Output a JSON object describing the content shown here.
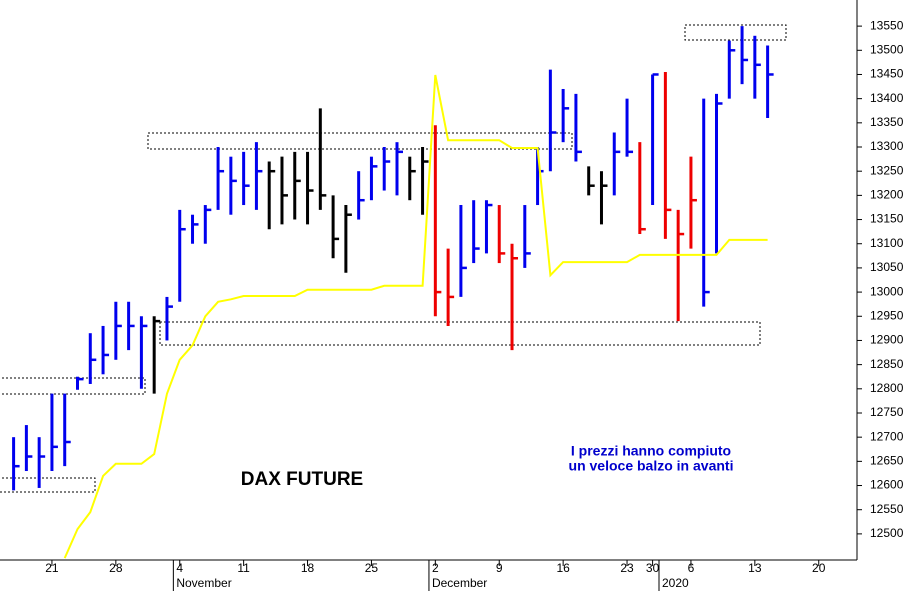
{
  "chart_data": {
    "type": "ohlc",
    "title": "DAX FUTURE",
    "annotation": [
      "I prezzi hanno compiuto",
      "un veloce balzo in avanti"
    ],
    "annotation_color": "#0000cc",
    "categories": [
      null,
      null,
      null,
      "21",
      null,
      null,
      null,
      null,
      "28",
      null,
      null,
      null,
      null,
      "4",
      null,
      null,
      null,
      null,
      "11",
      null,
      null,
      null,
      null,
      "18",
      null,
      null,
      null,
      null,
      "25",
      null,
      null,
      null,
      null,
      "2",
      null,
      null,
      null,
      null,
      "9",
      null,
      null,
      null,
      null,
      "16",
      null,
      null,
      null,
      null,
      "23",
      null,
      "30",
      null,
      null,
      "6",
      null,
      null,
      null,
      null,
      "13",
      null,
      null,
      null,
      null,
      "20"
    ],
    "months": [
      null,
      null,
      null,
      null,
      null,
      null,
      null,
      null,
      null,
      null,
      null,
      null,
      null,
      "November",
      null,
      null,
      null,
      null,
      null,
      null,
      null,
      null,
      null,
      null,
      null,
      null,
      null,
      null,
      null,
      null,
      null,
      null,
      null,
      "December",
      null,
      null,
      null,
      null,
      null,
      null,
      null,
      null,
      null,
      null,
      null,
      null,
      null,
      null,
      null,
      null,
      null,
      "2020",
      null,
      null,
      null,
      null,
      null,
      null,
      null,
      null,
      null,
      null,
      null,
      null
    ],
    "high": [
      12700,
      12725,
      12700,
      12790,
      12790,
      12825,
      12915,
      12930,
      12980,
      12980,
      12950,
      12950,
      12990,
      13170,
      13160,
      13180,
      13300,
      13280,
      13290,
      13310,
      13270,
      13280,
      13290,
      13290,
      13380,
      13200,
      13180,
      13250,
      13280,
      13300,
      13310,
      13280,
      13300,
      13345,
      13090,
      13180,
      13190,
      13190,
      13180,
      13100,
      13180,
      13300,
      13460,
      13420,
      13410,
      13260,
      13250,
      13330,
      13400,
      13310,
      13450,
      13455,
      13170,
      13280,
      13400,
      13410,
      13520,
      13550,
      13530,
      13510,
      null,
      null,
      null,
      null
    ],
    "low": [
      12590,
      12630,
      12595,
      12630,
      12640,
      12798,
      12810,
      12830,
      12860,
      12880,
      12800,
      12790,
      12900,
      12980,
      13100,
      13100,
      13170,
      13160,
      13180,
      13170,
      13130,
      13140,
      13150,
      13140,
      13170,
      13070,
      13040,
      13150,
      13190,
      13210,
      13200,
      13190,
      13160,
      12950,
      12930,
      12990,
      13060,
      13080,
      13060,
      12880,
      13050,
      13180,
      13250,
      13310,
      13270,
      13200,
      13140,
      13200,
      13280,
      13120,
      13180,
      13110,
      12940,
      13090,
      12970,
      13080,
      13400,
      13430,
      13400,
      13360,
      null,
      null,
      null,
      null
    ],
    "close": [
      12640,
      12660,
      12660,
      12680,
      12690,
      12820,
      12860,
      12870,
      12930,
      12930,
      12930,
      12940,
      12970,
      13130,
      13140,
      13170,
      13250,
      13230,
      13220,
      13250,
      13250,
      13200,
      13230,
      13210,
      13200,
      13110,
      13160,
      13190,
      13260,
      13270,
      13290,
      13250,
      13270,
      13000,
      12990,
      13050,
      13090,
      13180,
      13080,
      13070,
      13080,
      13250,
      13330,
      13380,
      13290,
      13220,
      13220,
      13290,
      13290,
      13130,
      13450,
      13170,
      13120,
      13190,
      13000,
      13390,
      13500,
      13480,
      13470,
      13450,
      null,
      null,
      null,
      null
    ],
    "bar_colors": [
      "#0000ee",
      "#0000ee",
      "#0000ee",
      "#0000ee",
      "#0000ee",
      "#0000ee",
      "#0000ee",
      "#0000ee",
      "#0000ee",
      "#0000ee",
      "#0000ee",
      "#000000",
      "#0000ee",
      "#0000ee",
      "#0000ee",
      "#0000ee",
      "#0000ee",
      "#0000ee",
      "#0000ee",
      "#0000ee",
      "#000000",
      "#000000",
      "#000000",
      "#000000",
      "#000000",
      "#000000",
      "#000000",
      "#0000ee",
      "#0000ee",
      "#0000ee",
      "#0000ee",
      "#000000",
      "#000000",
      "#ee0000",
      "#ee0000",
      "#0000ee",
      "#0000ee",
      "#0000ee",
      "#ee0000",
      "#ee0000",
      "#0000ee",
      "#0000ee",
      "#0000ee",
      "#0000ee",
      "#0000ee",
      "#000000",
      "#000000",
      "#0000ee",
      "#0000ee",
      "#ee0000",
      "#0000ee",
      "#ee0000",
      "#ee0000",
      "#ee0000",
      "#0000ee",
      "#0000ee",
      "#0000ee",
      "#0000ee",
      "#0000ee",
      "#0000ee",
      "#000000",
      "#000000",
      "#000000",
      "#000000"
    ],
    "line": {
      "color": "#ffff00",
      "values": [
        null,
        null,
        null,
        null,
        12450,
        12510,
        12545,
        12620,
        12645,
        12645,
        12645,
        12665,
        12790,
        12860,
        12890,
        12950,
        12980,
        12985,
        12992,
        12992,
        12992,
        12992,
        12992,
        13005,
        13005,
        13005,
        13005,
        13005,
        13005,
        13013,
        13013,
        13013,
        13013,
        13449,
        13314,
        13314,
        13314,
        13314,
        13314,
        13298,
        13298,
        13298,
        13035,
        13062,
        13062,
        13062,
        13062,
        13062,
        13062,
        13077,
        13077,
        13077,
        13077,
        13077,
        13077,
        13077,
        13108,
        13108,
        13108,
        13108,
        null,
        null,
        null,
        null
      ]
    },
    "ylim": [
      12446,
      13604
    ],
    "yticks": [
      12500,
      12550,
      12600,
      12650,
      12700,
      12750,
      12800,
      12850,
      12900,
      12950,
      13000,
      13050,
      13100,
      13150,
      13200,
      13250,
      13300,
      13350,
      13400,
      13450,
      13500,
      13550
    ]
  }
}
